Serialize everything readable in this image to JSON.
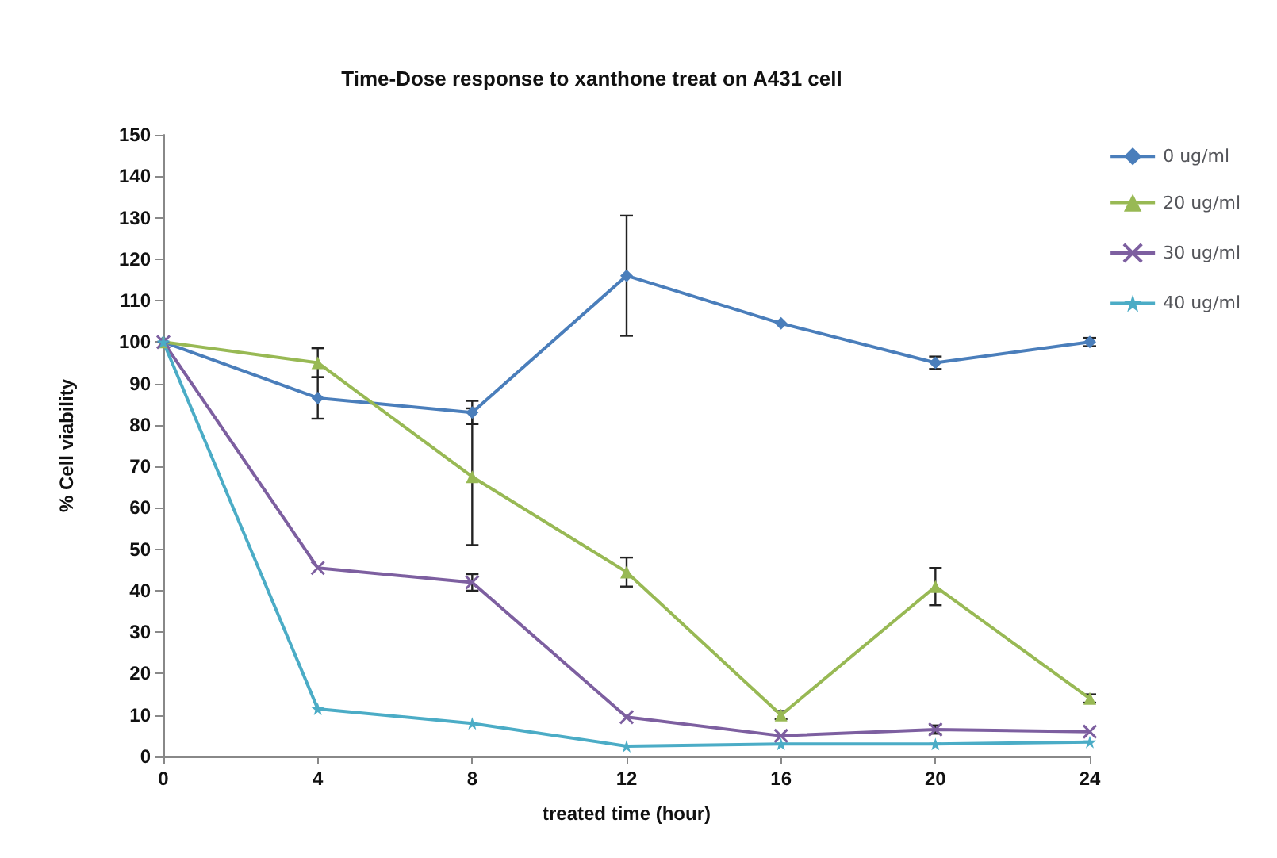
{
  "chart_data": {
    "type": "line",
    "title": "Time-Dose response to xanthone treat on A431 cell",
    "xlabel": "treated time (hour)",
    "ylabel": "% Cell viability",
    "x": [
      0,
      4,
      8,
      12,
      16,
      20,
      24
    ],
    "xlim": [
      0,
      24
    ],
    "xticks": [
      0,
      4,
      8,
      12,
      16,
      20,
      24
    ],
    "ylim": [
      0,
      150
    ],
    "yticks": [
      0,
      10,
      20,
      30,
      40,
      50,
      60,
      70,
      80,
      90,
      100,
      110,
      120,
      130,
      140,
      150
    ],
    "grid": false,
    "legend": "right",
    "series": [
      {
        "name": "0 ug/ml",
        "color": "#4a7ebb",
        "marker": "diamond",
        "values": [
          100,
          86.5,
          83,
          116,
          104.5,
          95,
          100
        ],
        "errors": [
          null,
          5,
          2.8,
          14.5,
          null,
          1.5,
          1
        ]
      },
      {
        "name": "20 ug/ml",
        "color": "#98b954",
        "marker": "triangle",
        "values": [
          100,
          95,
          67.5,
          44.5,
          10,
          41,
          14
        ],
        "errors": [
          null,
          3.5,
          16.5,
          3.5,
          1,
          4.5,
          1
        ]
      },
      {
        "name": "30 ug/ml",
        "color": "#7d5fa0",
        "marker": "cross",
        "values": [
          100,
          45.5,
          42,
          9.5,
          5,
          6.5,
          6
        ],
        "errors": [
          null,
          null,
          2,
          null,
          null,
          1,
          null
        ]
      },
      {
        "name": "40 ug/ml",
        "color": "#4bacc6",
        "marker": "star",
        "values": [
          100,
          11.5,
          8,
          2.5,
          3,
          3,
          3.5
        ]
      }
    ]
  }
}
